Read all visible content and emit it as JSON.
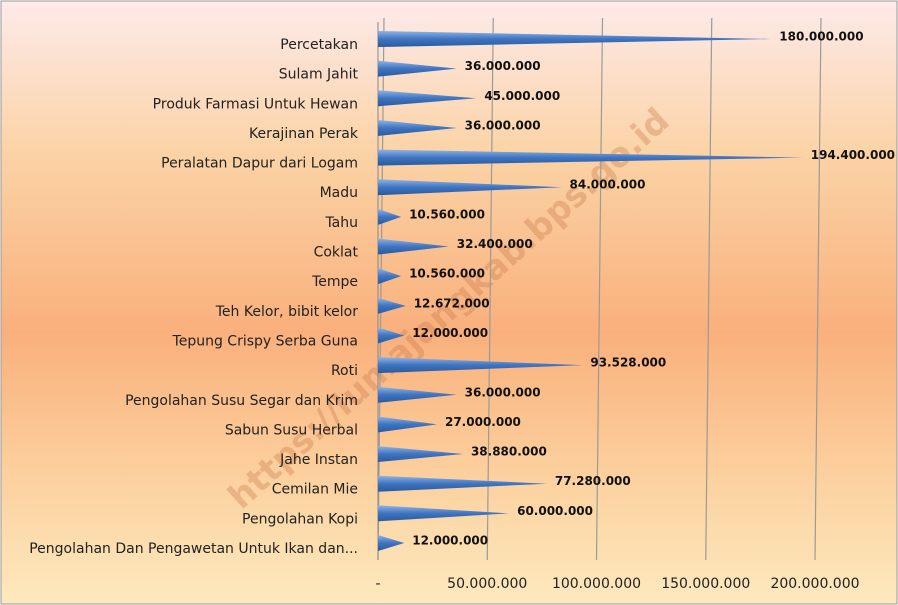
{
  "chart_data": {
    "type": "bar",
    "orientation": "horizontal",
    "categories": [
      "Percetakan",
      "Sulam Jahit",
      "Produk Farmasi Untuk Hewan",
      "Kerajinan Perak",
      "Peralatan Dapur dari Logam",
      "Madu",
      "Tahu",
      "Coklat",
      "Tempe",
      "Teh Kelor, bibit kelor",
      "Tepung Crispy Serba Guna",
      "Roti",
      "Pengolahan Susu Segar dan Krim",
      "Sabun Susu Herbal",
      "Jahe Instan",
      "Cemilan Mie",
      "Pengolahan Kopi",
      "Pengolahan Dan Pengawetan Untuk Ikan dan..."
    ],
    "values": [
      180000000,
      36000000,
      45000000,
      36000000,
      194400000,
      84000000,
      10560000,
      32400000,
      10560000,
      12672000,
      12000000,
      93528000,
      36000000,
      27000000,
      38880000,
      77280000,
      60000000,
      12000000
    ],
    "value_labels": [
      "180.000.000",
      "36.000.000",
      "45.000.000",
      "36.000.000",
      "194.400.000",
      "84.000.000",
      "10.560.000",
      "32.400.000",
      "10.560.000",
      "12.672.000",
      "12.000.000",
      "93.528.000",
      "36.000.000",
      "27.000.000",
      "38.880.000",
      "77.280.000",
      "60.000.000",
      "12.000.000"
    ],
    "color": "#4a7fc8",
    "xlim": [
      0,
      200000000
    ],
    "xticks": [
      {
        "value": 0,
        "label": "-"
      },
      {
        "value": 50000000,
        "label": "50.000.000"
      },
      {
        "value": 100000000,
        "label": "100.000.000"
      },
      {
        "value": 150000000,
        "label": "150.000.000"
      },
      {
        "value": 200000000,
        "label": "200.000.000"
      }
    ],
    "grid": true,
    "watermark": "https://lumajangkab.bps.go.id"
  }
}
